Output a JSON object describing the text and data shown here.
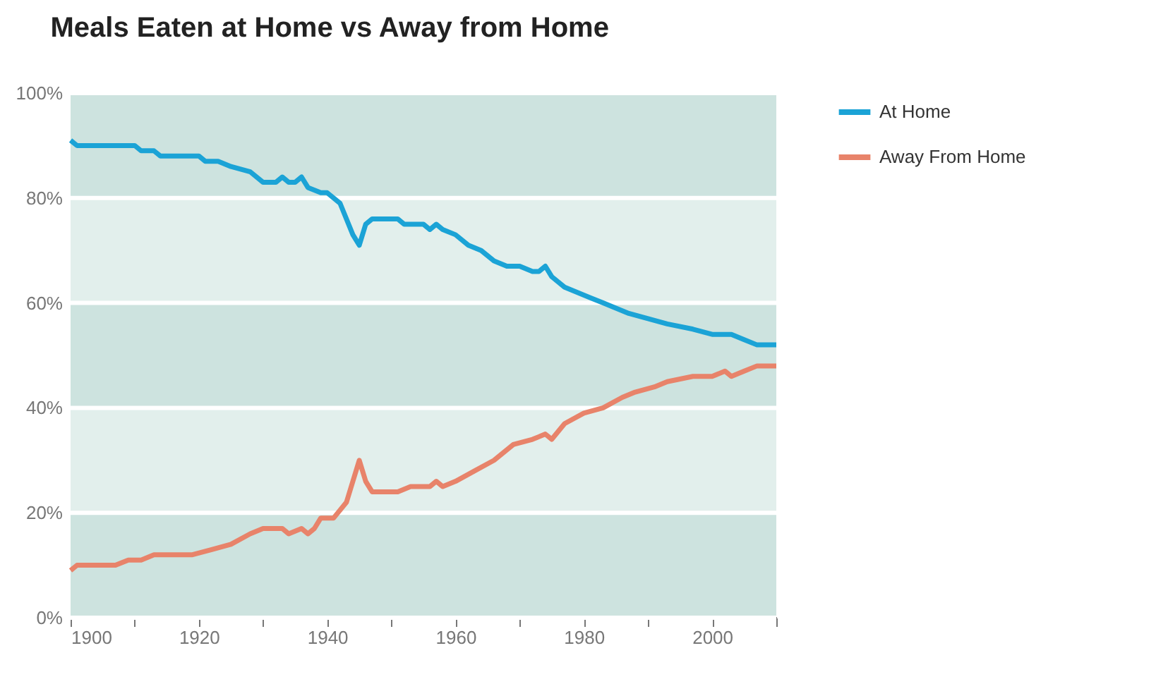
{
  "chart_data": {
    "type": "line",
    "title": "Meals Eaten at Home vs Away from Home",
    "series": [
      {
        "name": "At Home",
        "color": "#1ba3d6",
        "x": [
          1900,
          1901,
          1910,
          1911,
          1913,
          1914,
          1920,
          1921,
          1923,
          1925,
          1928,
          1930,
          1932,
          1933,
          1934,
          1935,
          1936,
          1937,
          1939,
          1940,
          1942,
          1944,
          1945,
          1946,
          1947,
          1951,
          1952,
          1955,
          1956,
          1957,
          1958,
          1960,
          1962,
          1964,
          1966,
          1968,
          1970,
          1972,
          1973,
          1974,
          1975,
          1977,
          1979,
          1981,
          1983,
          1985,
          1987,
          1990,
          1993,
          1997,
          2000,
          2002,
          2003,
          2005,
          2007,
          2010
        ],
        "values": [
          91,
          90,
          90,
          89,
          89,
          88,
          88,
          87,
          87,
          86,
          85,
          83,
          83,
          84,
          83,
          83,
          84,
          82,
          81,
          81,
          79,
          73,
          71,
          75,
          76,
          76,
          75,
          75,
          74,
          75,
          74,
          73,
          71,
          70,
          68,
          67,
          67,
          66,
          66,
          67,
          65,
          63,
          62,
          61,
          60,
          59,
          58,
          57,
          56,
          55,
          54,
          54,
          54,
          53,
          52,
          52
        ]
      },
      {
        "name": "Away From Home",
        "color": "#e8836a",
        "x": [
          1900,
          1901,
          1907,
          1909,
          1911,
          1913,
          1919,
          1922,
          1925,
          1928,
          1930,
          1933,
          1934,
          1936,
          1937,
          1938,
          1939,
          1941,
          1943,
          1945,
          1946,
          1947,
          1951,
          1953,
          1956,
          1957,
          1958,
          1960,
          1963,
          1966,
          1969,
          1972,
          1974,
          1975,
          1977,
          1980,
          1983,
          1986,
          1988,
          1991,
          1993,
          1997,
          2000,
          2002,
          2003,
          2005,
          2007,
          2010
        ],
        "values": [
          9,
          10,
          10,
          11,
          11,
          12,
          12,
          13,
          14,
          16,
          17,
          17,
          16,
          17,
          16,
          17,
          19,
          19,
          22,
          30,
          26,
          24,
          24,
          25,
          25,
          26,
          25,
          26,
          28,
          30,
          33,
          34,
          35,
          34,
          37,
          39,
          40,
          42,
          43,
          44,
          45,
          46,
          46,
          47,
          46,
          47,
          48,
          48
        ]
      }
    ],
    "xlim": [
      1900,
      2010
    ],
    "xticks": [
      1900,
      {
        "value": 1910,
        "label": null
      },
      1920,
      {
        "value": 1930,
        "label": null
      },
      1940,
      {
        "value": 1950,
        "label": null
      },
      1960,
      {
        "value": 1970,
        "label": null
      },
      1980,
      {
        "value": 1990,
        "label": null
      },
      2000,
      {
        "value": 2010,
        "label": null
      }
    ],
    "ylim": [
      0,
      100
    ],
    "yticks": [
      {
        "value": 0,
        "label": "0%"
      },
      {
        "value": 20,
        "label": "20%"
      },
      {
        "value": 40,
        "label": "40%"
      },
      {
        "value": 60,
        "label": "60%"
      },
      {
        "value": 80,
        "label": "80%"
      },
      {
        "value": 100,
        "label": "100%"
      }
    ],
    "bands": [
      {
        "axis": "y",
        "from": 0,
        "to": 20,
        "color": "#cde3df"
      },
      {
        "axis": "y",
        "from": 20,
        "to": 40,
        "color": "#e2efec"
      },
      {
        "axis": "y",
        "from": 40,
        "to": 60,
        "color": "#cde3df"
      },
      {
        "axis": "y",
        "from": 60,
        "to": 80,
        "color": "#e2efec"
      },
      {
        "axis": "y",
        "from": 80,
        "to": 100,
        "color": "#cde3df"
      }
    ],
    "grid": "y",
    "legend": "right",
    "marker": "none",
    "line_style": "solid"
  }
}
